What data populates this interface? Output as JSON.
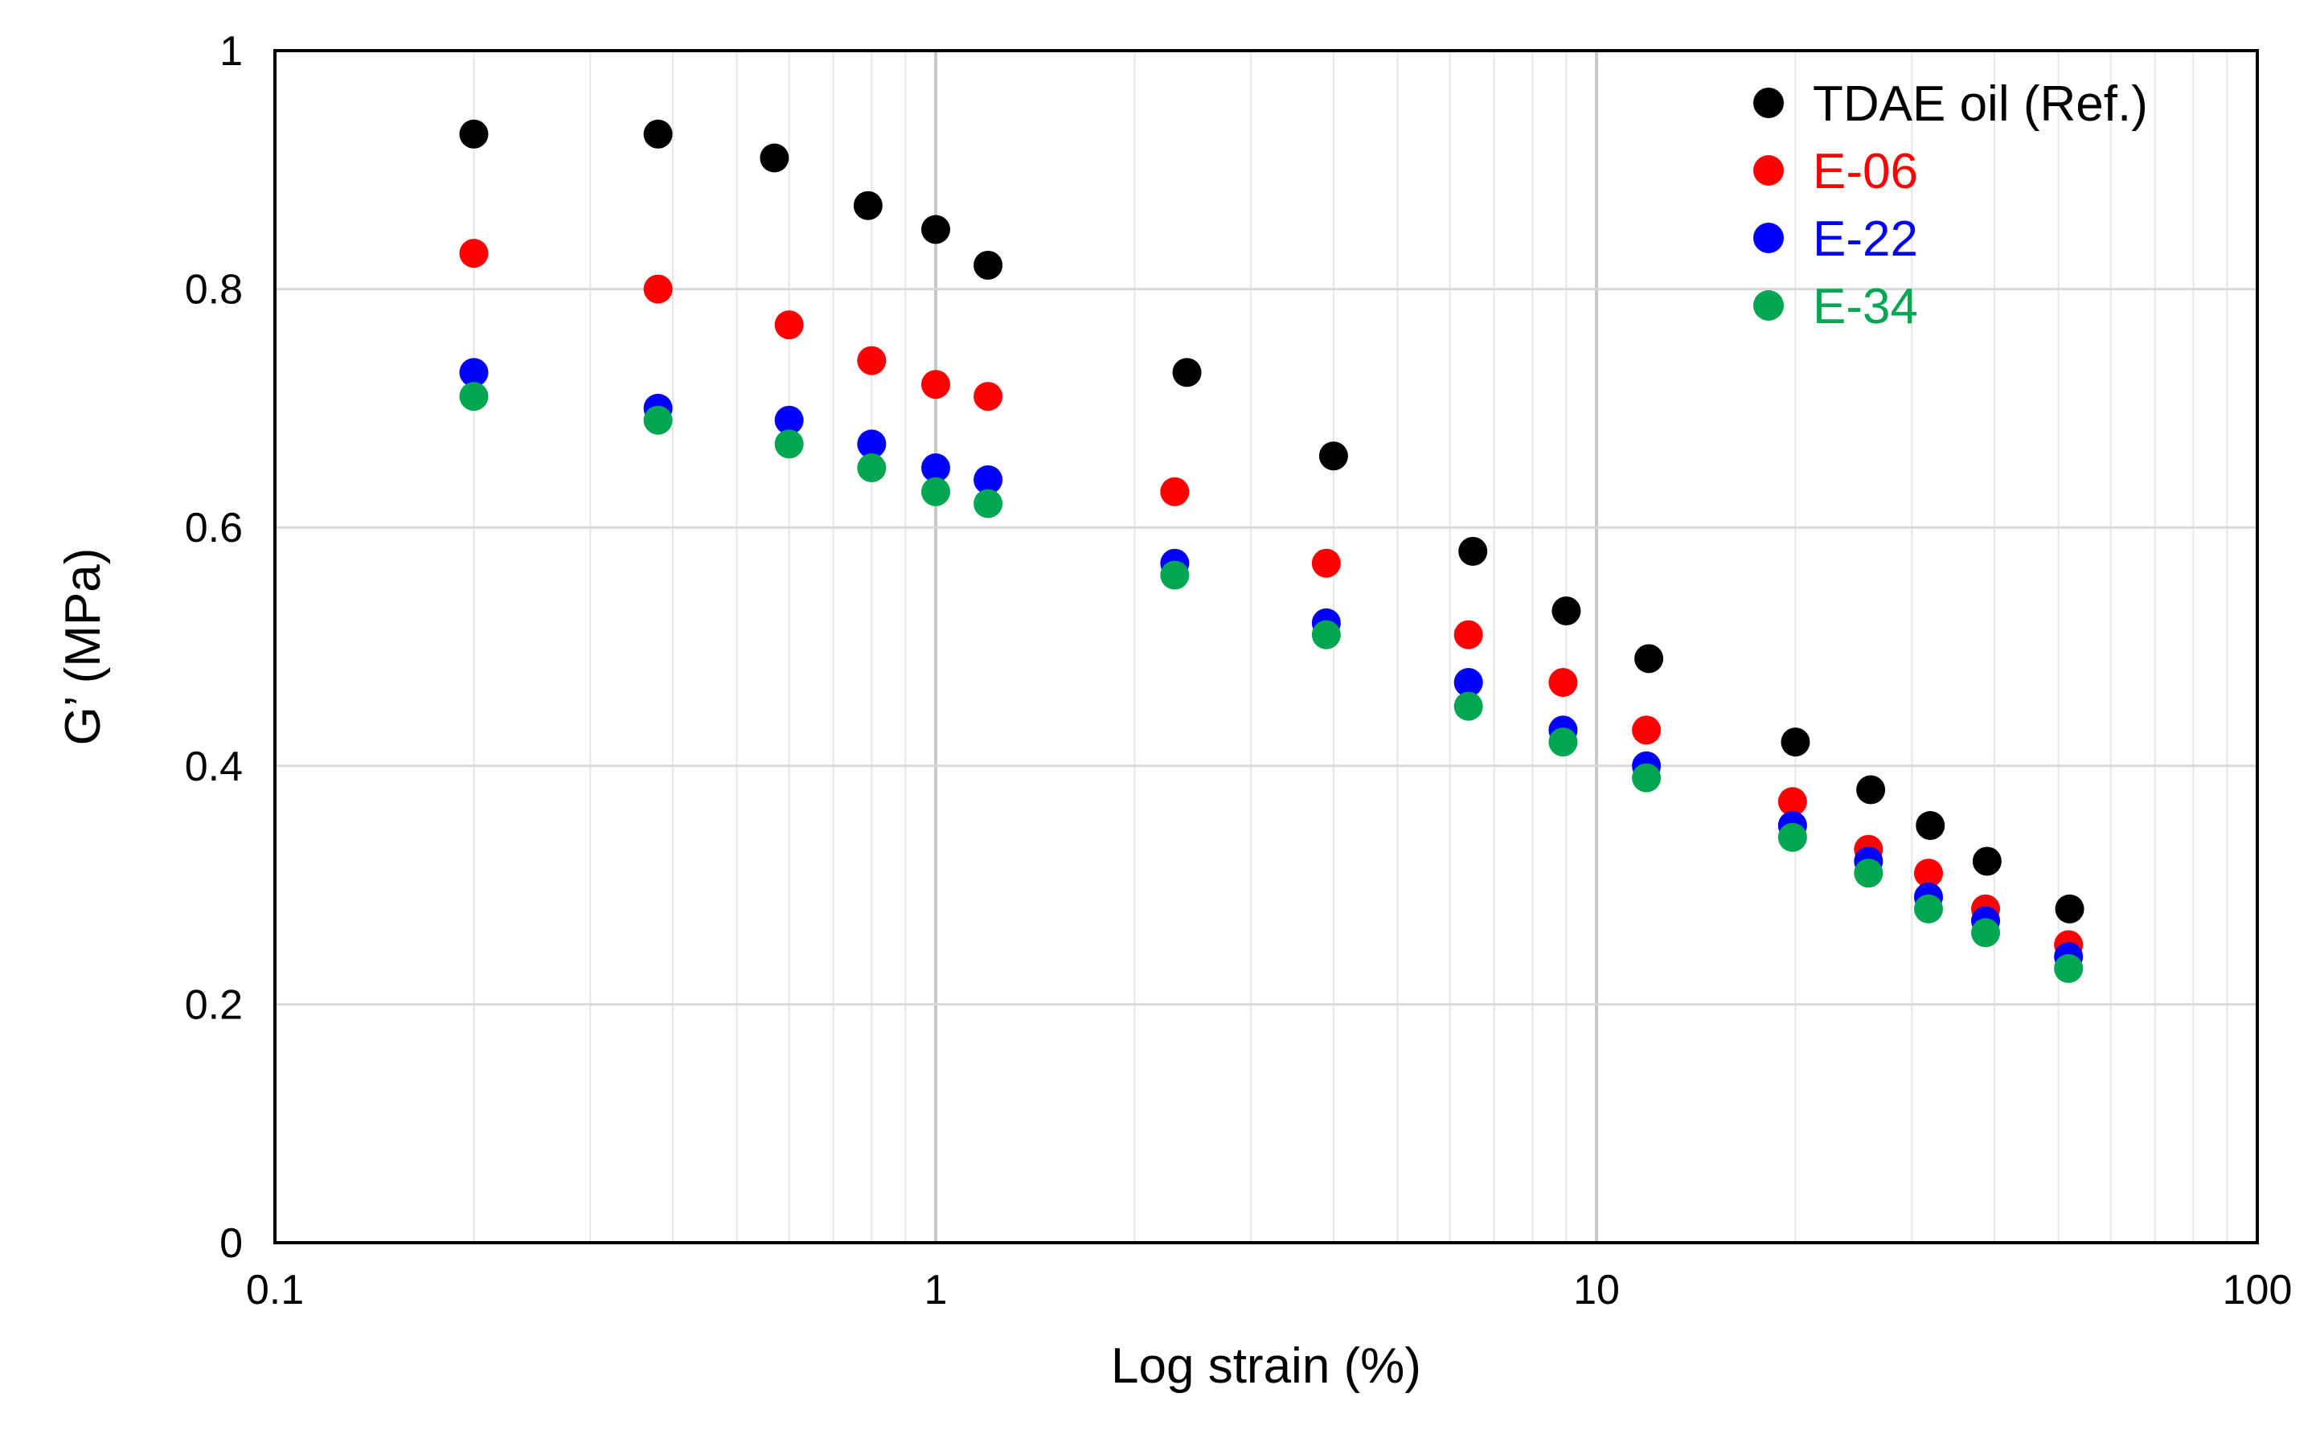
{
  "chart_data": {
    "type": "scatter",
    "title": "",
    "xlabel": "Log strain (%)",
    "ylabel": "G’ (MPa)",
    "xscale": "log",
    "xlim": [
      0.1,
      100
    ],
    "ylim": [
      0,
      1
    ],
    "grid": true,
    "legend_position": "top-right",
    "x_ticks": [
      {
        "value": 0.1,
        "label": "0.1"
      },
      {
        "value": 1,
        "label": "1"
      },
      {
        "value": 10,
        "label": "10"
      },
      {
        "value": 100,
        "label": "100"
      }
    ],
    "y_ticks": [
      {
        "value": 0,
        "label": "0"
      },
      {
        "value": 0.2,
        "label": "0.2"
      },
      {
        "value": 0.4,
        "label": "0.4"
      },
      {
        "value": 0.6,
        "label": "0.6"
      },
      {
        "value": 0.8,
        "label": "0.8"
      },
      {
        "value": 1,
        "label": "1"
      }
    ],
    "series": [
      {
        "name": "TDAE oil (Ref.)",
        "color": "#000000",
        "points": [
          [
            0.2,
            0.93
          ],
          [
            0.38,
            0.93
          ],
          [
            0.57,
            0.91
          ],
          [
            0.79,
            0.87
          ],
          [
            1.0,
            0.85
          ],
          [
            1.2,
            0.82
          ],
          [
            2.4,
            0.73
          ],
          [
            4.0,
            0.66
          ],
          [
            6.5,
            0.58
          ],
          [
            9.0,
            0.53
          ],
          [
            12.0,
            0.49
          ],
          [
            20.0,
            0.42
          ],
          [
            26.0,
            0.38
          ],
          [
            32.0,
            0.35
          ],
          [
            39.0,
            0.32
          ],
          [
            52.0,
            0.28
          ]
        ]
      },
      {
        "name": "E-06",
        "color": "#ff0000",
        "points": [
          [
            0.2,
            0.83
          ],
          [
            0.38,
            0.8
          ],
          [
            0.6,
            0.77
          ],
          [
            0.8,
            0.74
          ],
          [
            1.0,
            0.72
          ],
          [
            1.2,
            0.71
          ],
          [
            2.3,
            0.63
          ],
          [
            3.9,
            0.57
          ],
          [
            6.4,
            0.51
          ],
          [
            8.9,
            0.47
          ],
          [
            11.9,
            0.43
          ],
          [
            19.8,
            0.37
          ],
          [
            25.8,
            0.33
          ],
          [
            31.8,
            0.31
          ],
          [
            38.8,
            0.28
          ],
          [
            51.8,
            0.25
          ]
        ]
      },
      {
        "name": "E-22",
        "color": "#0000ff",
        "points": [
          [
            0.2,
            0.73
          ],
          [
            0.38,
            0.7
          ],
          [
            0.6,
            0.69
          ],
          [
            0.8,
            0.67
          ],
          [
            1.0,
            0.65
          ],
          [
            1.2,
            0.64
          ],
          [
            2.3,
            0.57
          ],
          [
            3.9,
            0.52
          ],
          [
            6.4,
            0.47
          ],
          [
            8.9,
            0.43
          ],
          [
            11.9,
            0.4
          ],
          [
            19.8,
            0.35
          ],
          [
            25.8,
            0.32
          ],
          [
            31.8,
            0.29
          ],
          [
            38.8,
            0.27
          ],
          [
            51.8,
            0.24
          ]
        ]
      },
      {
        "name": "E-34",
        "color": "#00a651",
        "points": [
          [
            0.2,
            0.71
          ],
          [
            0.38,
            0.69
          ],
          [
            0.6,
            0.67
          ],
          [
            0.8,
            0.65
          ],
          [
            1.0,
            0.63
          ],
          [
            1.2,
            0.62
          ],
          [
            2.3,
            0.56
          ],
          [
            3.9,
            0.51
          ],
          [
            6.4,
            0.45
          ],
          [
            8.9,
            0.42
          ],
          [
            11.9,
            0.39
          ],
          [
            19.8,
            0.34
          ],
          [
            25.8,
            0.31
          ],
          [
            31.8,
            0.28
          ],
          [
            38.8,
            0.26
          ],
          [
            51.8,
            0.23
          ]
        ]
      }
    ]
  }
}
